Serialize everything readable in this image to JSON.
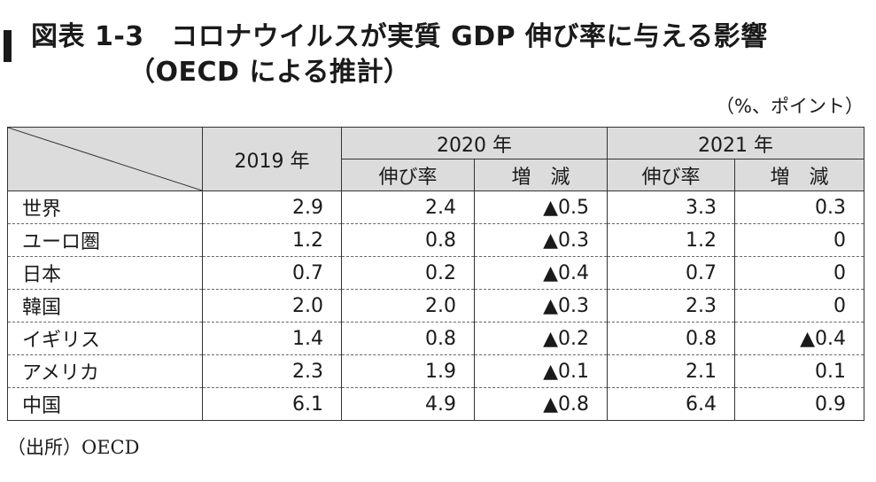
{
  "title": {
    "line1": "図表 1-3　コロナウイルスが実質 GDP 伸び率に与える影響",
    "line2": "（OECD による推計）"
  },
  "unit": "（%、ポイント）",
  "table": {
    "header": {
      "y2019": "2019 年",
      "y2020": "2020 年",
      "y2021": "2021 年",
      "growth": "伸び率",
      "change": "増　減"
    },
    "rows": [
      {
        "country": "世界",
        "y2019": "2.9",
        "g2020": "2.4",
        "c2020": "▲0.5",
        "g2021": "3.3",
        "c2021": "0.3"
      },
      {
        "country": "ユーロ圏",
        "y2019": "1.2",
        "g2020": "0.8",
        "c2020": "▲0.3",
        "g2021": "1.2",
        "c2021": "0"
      },
      {
        "country": "日本",
        "y2019": "0.7",
        "g2020": "0.2",
        "c2020": "▲0.4",
        "g2021": "0.7",
        "c2021": "0"
      },
      {
        "country": "韓国",
        "y2019": "2.0",
        "g2020": "2.0",
        "c2020": "▲0.3",
        "g2021": "2.3",
        "c2021": "0"
      },
      {
        "country": "イギリス",
        "y2019": "1.4",
        "g2020": "0.8",
        "c2020": "▲0.2",
        "g2021": "0.8",
        "c2021": "▲0.4"
      },
      {
        "country": "アメリカ",
        "y2019": "2.3",
        "g2020": "1.9",
        "c2020": "▲0.1",
        "g2021": "2.1",
        "c2021": "0.1"
      },
      {
        "country": "中国",
        "y2019": "6.1",
        "g2020": "4.9",
        "c2020": "▲0.8",
        "g2021": "6.4",
        "c2021": "0.9"
      }
    ]
  },
  "source": "（出所）OECD"
}
